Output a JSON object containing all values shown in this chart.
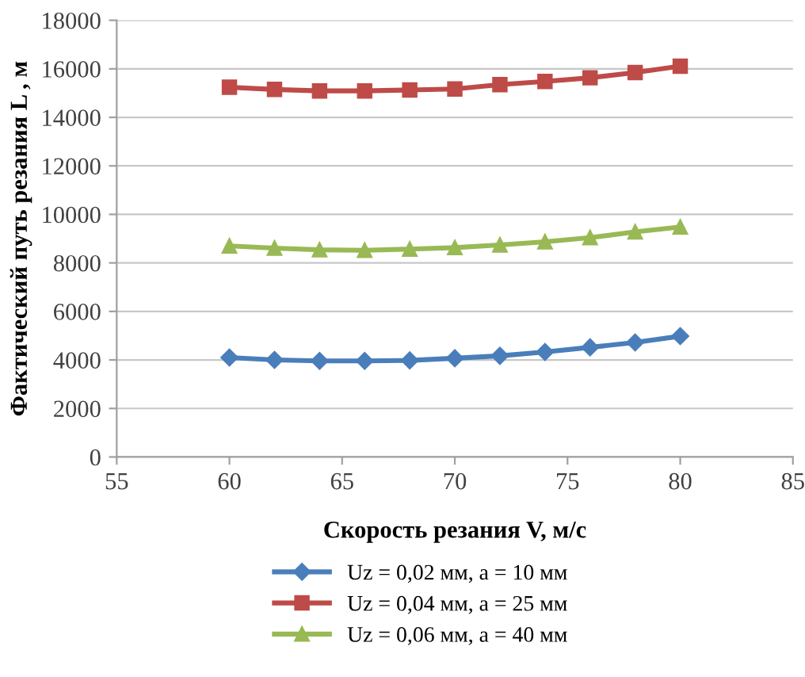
{
  "chart_data": {
    "type": "line",
    "xlabel": "Скорость резания V, м/с",
    "ylabel": "Фактический путь резания L , м",
    "x": [
      60,
      62,
      64,
      66,
      68,
      70,
      72,
      74,
      76,
      78,
      80
    ],
    "series": [
      {
        "name": "Uz = 0,02 мм, a = 10 мм",
        "color": "#4a7ebb",
        "marker": "diamond",
        "values": [
          4100,
          4000,
          3960,
          3960,
          3980,
          4070,
          4170,
          4330,
          4520,
          4720,
          4980
        ]
      },
      {
        "name": "Uz = 0,04 мм, a = 25 мм",
        "color": "#be4b48",
        "marker": "square",
        "values": [
          15240,
          15150,
          15090,
          15090,
          15130,
          15170,
          15350,
          15480,
          15630,
          15850,
          16110
        ]
      },
      {
        "name": "Uz = 0,06 мм, a = 40 мм",
        "color": "#98b954",
        "marker": "triangle",
        "values": [
          8700,
          8610,
          8540,
          8520,
          8570,
          8630,
          8740,
          8870,
          9040,
          9280,
          9480
        ]
      }
    ],
    "xlim": [
      55,
      85
    ],
    "xticks": [
      55,
      60,
      65,
      70,
      75,
      80,
      85
    ],
    "ylim": [
      0,
      18000
    ],
    "yticks": [
      0,
      2000,
      4000,
      6000,
      8000,
      10000,
      12000,
      14000,
      16000,
      18000
    ],
    "grid": "y",
    "legend": "bottom",
    "line_style": "solid"
  }
}
